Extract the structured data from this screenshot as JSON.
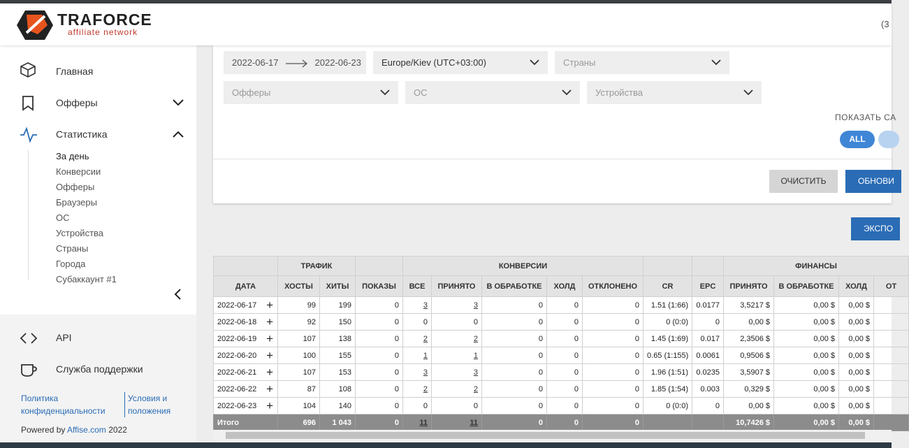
{
  "header": {
    "logo_name": "TRAFORCE",
    "logo_sub": "affiliate network",
    "right_text": "(3"
  },
  "sidebar": {
    "nav": [
      "Главная",
      "Офферы",
      "Статистика"
    ],
    "sub": [
      "За день",
      "Конверсии",
      "Офферы",
      "Браузеры",
      "ОС",
      "Устройства",
      "Страны",
      "Города",
      "Субаккаунт #1"
    ],
    "bottom": [
      "API",
      "Служба поддержки"
    ],
    "links": [
      "Политика конфиденциальности",
      "Условия и положения"
    ],
    "powered": "Powered by",
    "powered_link": "Affise.com",
    "year": "2022"
  },
  "filters": {
    "date_from": "2022-06-17",
    "date_to": "2022-06-23",
    "timezone": "Europe/Kiev (UTC+03:00)",
    "countries": "Страны",
    "offers": "Офферы",
    "os": "ОС",
    "devices": "Устройства",
    "show_label": "ПОКАЗАТЬ СА",
    "all": "ALL",
    "clear": "ОЧИСТИТЬ",
    "refresh": "ОБНОВИ",
    "export": "ЭКСПО"
  },
  "table": {
    "groups": [
      "ТРАФИК",
      "КОНВЕРСИИ",
      "ФИНАНСЫ"
    ],
    "columns": [
      "ДАТА",
      "ХОСТЫ",
      "ХИТЫ",
      "ПОКАЗЫ",
      "ВСЕ",
      "ПРИНЯТО",
      "В ОБРАБОТКЕ",
      "ХОЛД",
      "ОТКЛОНЕНО",
      "CR",
      "EPC",
      "ПРИНЯТО",
      "В ОБРАБОТКЕ",
      "ХОЛД",
      "ОТ"
    ],
    "rows": [
      [
        "2022-06-17",
        "99",
        "199",
        "0",
        "3",
        "3",
        "0",
        "0",
        "0",
        "1.51 (1:66)",
        "0.0177",
        "3,5217 $",
        "0,00 $",
        "0,00 $",
        null
      ],
      [
        "2022-06-18",
        "92",
        "150",
        "0",
        "0",
        "0",
        "0",
        "0",
        "0",
        "0 (0:0)",
        "0",
        "0,00 $",
        "0,00 $",
        "0,00 $",
        null
      ],
      [
        "2022-06-19",
        "107",
        "138",
        "0",
        "2",
        "2",
        "0",
        "0",
        "0",
        "1.45 (1:69)",
        "0.017",
        "2,3506 $",
        "0,00 $",
        "0,00 $",
        null
      ],
      [
        "2022-06-20",
        "100",
        "155",
        "0",
        "1",
        "1",
        "0",
        "0",
        "0",
        "0.65 (1:155)",
        "0.0061",
        "0,9506 $",
        "0,00 $",
        "0,00 $",
        null
      ],
      [
        "2022-06-21",
        "107",
        "153",
        "0",
        "3",
        "3",
        "0",
        "0",
        "0",
        "1.96 (1:51)",
        "0.0235",
        "3,5907 $",
        "0,00 $",
        "0,00 $",
        null
      ],
      [
        "2022-06-22",
        "87",
        "108",
        "0",
        "2",
        "2",
        "0",
        "0",
        "0",
        "1.85 (1:54)",
        "0.003",
        "0,329 $",
        "0,00 $",
        "0,00 $",
        null
      ],
      [
        "2022-06-23",
        "104",
        "140",
        "0",
        "0",
        "0",
        "0",
        "0",
        "0",
        "0 (0:0)",
        "0",
        "0,00 $",
        "0,00 $",
        "0,00 $",
        null
      ]
    ],
    "total": [
      "Итого",
      "696",
      "1 043",
      "0",
      "11",
      "11",
      "0",
      "0",
      "0",
      null,
      null,
      "10,7426 $",
      "0,00 $",
      "0,00 $",
      null
    ]
  }
}
